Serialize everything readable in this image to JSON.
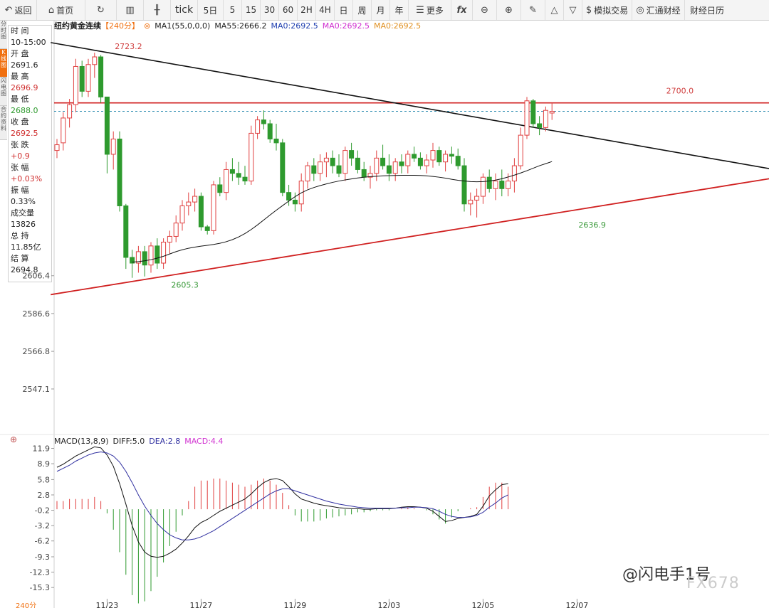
{
  "toolbar": {
    "back": "返回",
    "home": "首页",
    "tick": "tick",
    "periods": [
      "5日",
      "5",
      "15",
      "30",
      "60",
      "2H",
      "4H",
      "日",
      "周",
      "月",
      "年"
    ],
    "more": "更多",
    "sim_trade": "模拟交易",
    "huitong": "汇通财经",
    "calendar": "财经日历"
  },
  "side_tabs": [
    "分时图",
    "K线图",
    "闪电图",
    "合约资料"
  ],
  "info_panel": {
    "time_label": "时 间",
    "time_value": "10-15:00",
    "open_label": "开 盘",
    "open_value": "2691.6",
    "high_label": "最 高",
    "high_value": "2696.9",
    "low_label": "最 低",
    "low_value": "2688.0",
    "close_label": "收 盘",
    "close_value": "2692.5",
    "change_label": "张 跌",
    "change_value": "+0.9",
    "pct_label": "张 幅",
    "pct_value": "+0.03%",
    "amp_label": "振 幅",
    "amp_value": "0.33%",
    "vol_label": "成交量",
    "vol_value": "13826",
    "oi_label": "总 持",
    "oi_value": "11.85亿",
    "settle_label": "结 算",
    "settle_value": "2694.8"
  },
  "legend_main": {
    "name": "纽约黄金连续",
    "period": "【240分】",
    "ma_block": "MA1(55,0,0,0)",
    "ma55": "MA55:2666.2",
    "ma0a": "MA0:2692.5",
    "ma0b": "MA0:2692.5",
    "ma0c": "MA0:2692.5"
  },
  "legend_macd": {
    "name": "MACD(13,8,9)",
    "diff": "DIFF:5.0",
    "dea": "DEA:2.8",
    "macd": "MACD:4.4"
  },
  "watermark": "@闪电手1号",
  "watermark2": "FX678",
  "period_box": "240分",
  "colors": {
    "up": "#e04040",
    "down": "#2e9a2e",
    "accent": "#f07010",
    "macd_pink": "#d030d0",
    "dea_blue": "#3030a0"
  },
  "chart_data": {
    "type": "candlestick",
    "main": {
      "y_ticks": [
        2606.4,
        2586.6,
        2566.8,
        2547.1
      ],
      "y_range": [
        2524.0,
        2740.0
      ],
      "x_labels": [
        "11/23",
        "11/27",
        "11/29",
        "12/03",
        "12/05",
        "12/07"
      ],
      "annotations": [
        {
          "label": "2723.2",
          "value": 2723.2,
          "index": 9,
          "color": "red"
        },
        {
          "label": "2605.3",
          "value": 2605.3,
          "index": 18,
          "color": "green"
        },
        {
          "label": "2636.9",
          "value": 2636.9,
          "index": 83,
          "color": "green"
        },
        {
          "label": "2700.0",
          "value": 2700.0,
          "index": 97,
          "color": "red"
        }
      ],
      "resistance_level": 2696.9,
      "last_price": 2692.5,
      "trendline_down": [
        {
          "index": -1,
          "value": 2728.5
        },
        {
          "index": 118,
          "value": 2660.0
        }
      ],
      "trendline_up": [
        {
          "index": -1,
          "value": 2596.5
        },
        {
          "index": 118,
          "value": 2659.5
        }
      ],
      "ohlc": [
        [
          2672,
          2678,
          2668,
          2675
        ],
        [
          2676,
          2692,
          2672,
          2689
        ],
        [
          2689,
          2699,
          2684,
          2696
        ],
        [
          2696,
          2720,
          2692,
          2716
        ],
        [
          2716,
          2719,
          2700,
          2703
        ],
        [
          2703,
          2720,
          2700,
          2717
        ],
        [
          2717,
          2723.2,
          2710,
          2721
        ],
        [
          2721,
          2722,
          2697,
          2700
        ],
        [
          2700,
          2700,
          2660,
          2670
        ],
        [
          2670,
          2682,
          2662,
          2678
        ],
        [
          2678,
          2682,
          2640,
          2643
        ],
        [
          2643,
          2644,
          2610,
          2616
        ],
        [
          2616,
          2620,
          2605.3,
          2613
        ],
        [
          2613,
          2622,
          2608,
          2619
        ],
        [
          2619,
          2622,
          2606,
          2612
        ],
        [
          2612,
          2624,
          2608,
          2622
        ],
        [
          2622,
          2626,
          2610,
          2613
        ],
        [
          2613,
          2626,
          2610,
          2624
        ],
        [
          2624,
          2630,
          2618,
          2627
        ],
        [
          2627,
          2638,
          2624,
          2634
        ],
        [
          2634,
          2646,
          2630,
          2643
        ],
        [
          2643,
          2650,
          2638,
          2645
        ],
        [
          2645,
          2652,
          2640,
          2648
        ],
        [
          2648,
          2650,
          2630,
          2632
        ],
        [
          2632,
          2633,
          2628,
          2630
        ],
        [
          2630,
          2656,
          2628,
          2654
        ],
        [
          2654,
          2658,
          2648,
          2650
        ],
        [
          2650,
          2666,
          2646,
          2662
        ],
        [
          2662,
          2668,
          2656,
          2660
        ],
        [
          2660,
          2666,
          2654,
          2658
        ],
        [
          2658,
          2664,
          2654,
          2656
        ],
        [
          2656,
          2685,
          2654,
          2681
        ],
        [
          2681,
          2690,
          2678,
          2688
        ],
        [
          2688,
          2693,
          2683,
          2686
        ],
        [
          2686,
          2688,
          2676,
          2678
        ],
        [
          2678,
          2686,
          2672,
          2676
        ],
        [
          2676,
          2678,
          2648,
          2650
        ],
        [
          2650,
          2654,
          2643,
          2646
        ],
        [
          2646,
          2650,
          2640,
          2644
        ],
        [
          2644,
          2660,
          2640,
          2656
        ],
        [
          2656,
          2666,
          2652,
          2664
        ],
        [
          2664,
          2668,
          2656,
          2660
        ],
        [
          2660,
          2670,
          2656,
          2666
        ],
        [
          2666,
          2671,
          2658,
          2668
        ],
        [
          2668,
          2672,
          2660,
          2664
        ],
        [
          2664,
          2670,
          2658,
          2660
        ],
        [
          2660,
          2674,
          2656,
          2672
        ],
        [
          2672,
          2676,
          2664,
          2668
        ],
        [
          2668,
          2672,
          2660,
          2662
        ],
        [
          2662,
          2666,
          2656,
          2658
        ],
        [
          2658,
          2664,
          2652,
          2660
        ],
        [
          2660,
          2672,
          2656,
          2668
        ],
        [
          2668,
          2675,
          2662,
          2664
        ],
        [
          2664,
          2670,
          2656,
          2660
        ],
        [
          2660,
          2668,
          2656,
          2666
        ],
        [
          2666,
          2670,
          2660,
          2664
        ],
        [
          2664,
          2672,
          2660,
          2670
        ],
        [
          2670,
          2674,
          2666,
          2668
        ],
        [
          2668,
          2671,
          2662,
          2664
        ],
        [
          2664,
          2670,
          2660,
          2667
        ],
        [
          2667,
          2676,
          2663,
          2672
        ],
        [
          2672,
          2674,
          2664,
          2666
        ],
        [
          2666,
          2672,
          2661,
          2670
        ],
        [
          2670,
          2674,
          2665,
          2669
        ],
        [
          2669,
          2673,
          2662,
          2664
        ],
        [
          2664,
          2668,
          2640,
          2644
        ],
        [
          2644,
          2650,
          2638,
          2646
        ],
        [
          2646,
          2652,
          2636.9,
          2648
        ],
        [
          2648,
          2660,
          2644,
          2658
        ],
        [
          2658,
          2662,
          2650,
          2652
        ],
        [
          2652,
          2660,
          2646,
          2656
        ],
        [
          2656,
          2662,
          2648,
          2652
        ],
        [
          2652,
          2660,
          2648,
          2656
        ],
        [
          2656,
          2668,
          2650,
          2664
        ],
        [
          2664,
          2684,
          2662,
          2680
        ],
        [
          2680,
          2700.0,
          2678,
          2698
        ],
        [
          2698,
          2699,
          2684,
          2686
        ],
        [
          2686,
          2690,
          2680,
          2684
        ],
        [
          2684,
          2695,
          2682,
          2693
        ],
        [
          2691.6,
          2696.9,
          2688.0,
          2692.5
        ]
      ],
      "ma55": [
        2613.5,
        2613.8,
        2614.2,
        2614.8,
        2615.6,
        2616.6,
        2617.8,
        2619.0,
        2620.0,
        2620.8,
        2621.4,
        2621.9,
        2622.3,
        2622.8,
        2623.4,
        2624.2,
        2625.3,
        2626.7,
        2628.5,
        2630.6,
        2633.0,
        2635.6,
        2638.2,
        2640.7,
        2643.1,
        2645.5,
        2647.8,
        2649.8,
        2651.4,
        2652.6,
        2653.6,
        2654.5,
        2655.3,
        2656.0,
        2656.6,
        2657.1,
        2657.6,
        2658.0,
        2658.3,
        2658.5,
        2658.7,
        2658.8,
        2658.9,
        2659.0,
        2659.0,
        2659.0,
        2658.9,
        2658.7,
        2658.4,
        2658.0,
        2657.5,
        2656.9,
        2656.4,
        2656.0,
        2655.7,
        2655.6,
        2655.7,
        2656.0,
        2656.5,
        2657.2,
        2658.1,
        2659.1,
        2660.2,
        2661.4,
        2662.7,
        2664.0,
        2665.1,
        2666.2
      ]
    },
    "macd": {
      "y_ticks": [
        11.9,
        8.9,
        5.8,
        2.8,
        -0.2,
        -3.2,
        -6.2,
        -9.3,
        -12.3,
        -15.3
      ],
      "y_range": [
        -17.5,
        13.5
      ],
      "diff": [
        8.2,
        8.8,
        9.6,
        10.4,
        11.0,
        11.6,
        12.2,
        12.0,
        10.6,
        8.4,
        5.0,
        1.0,
        -3.2,
        -6.4,
        -8.4,
        -9.2,
        -9.4,
        -9.2,
        -8.6,
        -7.8,
        -6.6,
        -5.2,
        -3.6,
        -2.6,
        -2.0,
        -1.2,
        -0.4,
        0.2,
        0.8,
        1.4,
        2.0,
        3.0,
        4.2,
        5.2,
        5.8,
        6.0,
        5.6,
        4.4,
        3.0,
        2.0,
        1.6,
        1.2,
        0.9,
        0.7,
        0.5,
        0.3,
        0.2,
        0.1,
        0.1,
        0.0,
        0.0,
        0.1,
        0.1,
        0.1,
        0.2,
        0.4,
        0.5,
        0.5,
        0.4,
        0.2,
        -0.4,
        -1.4,
        -2.4,
        -2.2,
        -1.8,
        -1.6,
        -1.4,
        -1.0,
        0.6,
        2.6,
        3.8,
        4.8,
        5.0
      ],
      "dea": [
        7.4,
        8.0,
        8.6,
        9.4,
        10.0,
        10.6,
        11.0,
        11.2,
        11.0,
        10.4,
        9.2,
        7.4,
        5.2,
        2.8,
        0.6,
        -1.2,
        -2.8,
        -4.0,
        -5.0,
        -5.6,
        -6.0,
        -6.0,
        -5.8,
        -5.4,
        -4.8,
        -4.2,
        -3.4,
        -2.6,
        -1.8,
        -1.0,
        -0.2,
        0.6,
        1.4,
        2.2,
        3.0,
        3.6,
        4.0,
        4.0,
        3.6,
        3.2,
        2.8,
        2.4,
        2.0,
        1.6,
        1.3,
        1.0,
        0.8,
        0.6,
        0.4,
        0.3,
        0.2,
        0.2,
        0.2,
        0.2,
        0.2,
        0.3,
        0.3,
        0.4,
        0.4,
        0.3,
        0.1,
        -0.4,
        -1.0,
        -1.4,
        -1.6,
        -1.6,
        -1.5,
        -1.2,
        -0.6,
        0.4,
        1.2,
        2.2,
        2.8
      ],
      "hist": [
        1.6,
        1.6,
        2.0,
        2.0,
        2.0,
        2.0,
        2.4,
        1.6,
        -0.8,
        -4.0,
        -8.4,
        -12.8,
        -16.8,
        -18.4,
        -18.0,
        -16.0,
        -13.2,
        -10.4,
        -7.2,
        -4.4,
        -1.2,
        1.6,
        4.4,
        5.6,
        5.6,
        6.0,
        6.0,
        5.6,
        5.2,
        4.8,
        4.4,
        4.8,
        5.6,
        6.0,
        5.6,
        4.8,
        3.2,
        0.8,
        -1.2,
        -2.4,
        -2.4,
        -2.4,
        -2.2,
        -1.8,
        -1.6,
        -1.4,
        -1.2,
        -1.0,
        -0.6,
        -0.6,
        -0.4,
        -0.2,
        -0.2,
        -0.2,
        0.0,
        0.2,
        0.4,
        0.2,
        0.0,
        -0.2,
        -1.0,
        -2.0,
        -2.8,
        -1.6,
        -0.4,
        0.0,
        0.2,
        0.4,
        2.4,
        4.4,
        5.2,
        5.2,
        4.4
      ]
    }
  }
}
